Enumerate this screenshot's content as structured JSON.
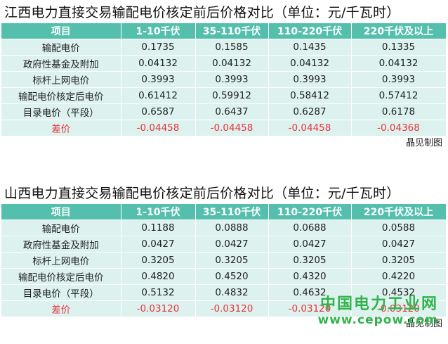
{
  "tables": [
    {
      "title": "江西电力直接交易输配电价核定前后价格对比（单位：元/千瓦时）",
      "headers": [
        "项目",
        "1-10千伏",
        "35-110千伏",
        "110-220千伏",
        "220千伏及以上"
      ],
      "rows": [
        [
          "输配电价",
          "0.1735",
          "0.1585",
          "0.1435",
          "0.1335"
        ],
        [
          "政府性基金及附加",
          "0.04132",
          "0.04132",
          "0.04132",
          "0.04132"
        ],
        [
          "标杆上网电价",
          "0.3993",
          "0.3993",
          "0.3993",
          "0.3993"
        ],
        [
          "输配电价核定后电价",
          "0.61412",
          "0.59912",
          "0.58412",
          "0.57412"
        ],
        [
          "目录电价（平段）",
          "0.6587",
          "0.6437",
          "0.6287",
          "0.6178"
        ],
        [
          "差价",
          "-0.04458",
          "-0.04458",
          "-0.04458",
          "-0.04368"
        ]
      ],
      "source": "晶见制图"
    },
    {
      "title": "山西电力直接交易输配电价核定前后价格对比（单位：元/千瓦时）",
      "headers": [
        "项目",
        "1-10千伏",
        "35-110千伏",
        "110-220千伏",
        "220千伏及以上"
      ],
      "rows": [
        [
          "输配电价",
          "0.1188",
          "0.0888",
          "0.0688",
          "0.0588"
        ],
        [
          "政府性基金及附加",
          "0.0427",
          "0.0427",
          "0.0427",
          "0.0427"
        ],
        [
          "标杆上网电价",
          "0.3205",
          "0.3205",
          "0.3205",
          "0.3205"
        ],
        [
          "输配电价核定后电价",
          "0.4820",
          "0.4520",
          "0.4320",
          "0.4220"
        ],
        [
          "目录电价（平段）",
          "0.5132",
          "0.4832",
          "0.4632",
          "0.4532"
        ],
        [
          "差价",
          "-0.03120",
          "-0.03120",
          "-0.03120",
          "-0.03120"
        ]
      ],
      "source": "晶见制图"
    }
  ],
  "watermark": {
    "line1": "中国电力工业网",
    "line2": "www.cepow.com"
  },
  "colors": {
    "header_bg": "#55bfae",
    "row_bg": "#ddf2ee",
    "diff_text": "#e8343e",
    "watermark": "#2fb34a"
  }
}
